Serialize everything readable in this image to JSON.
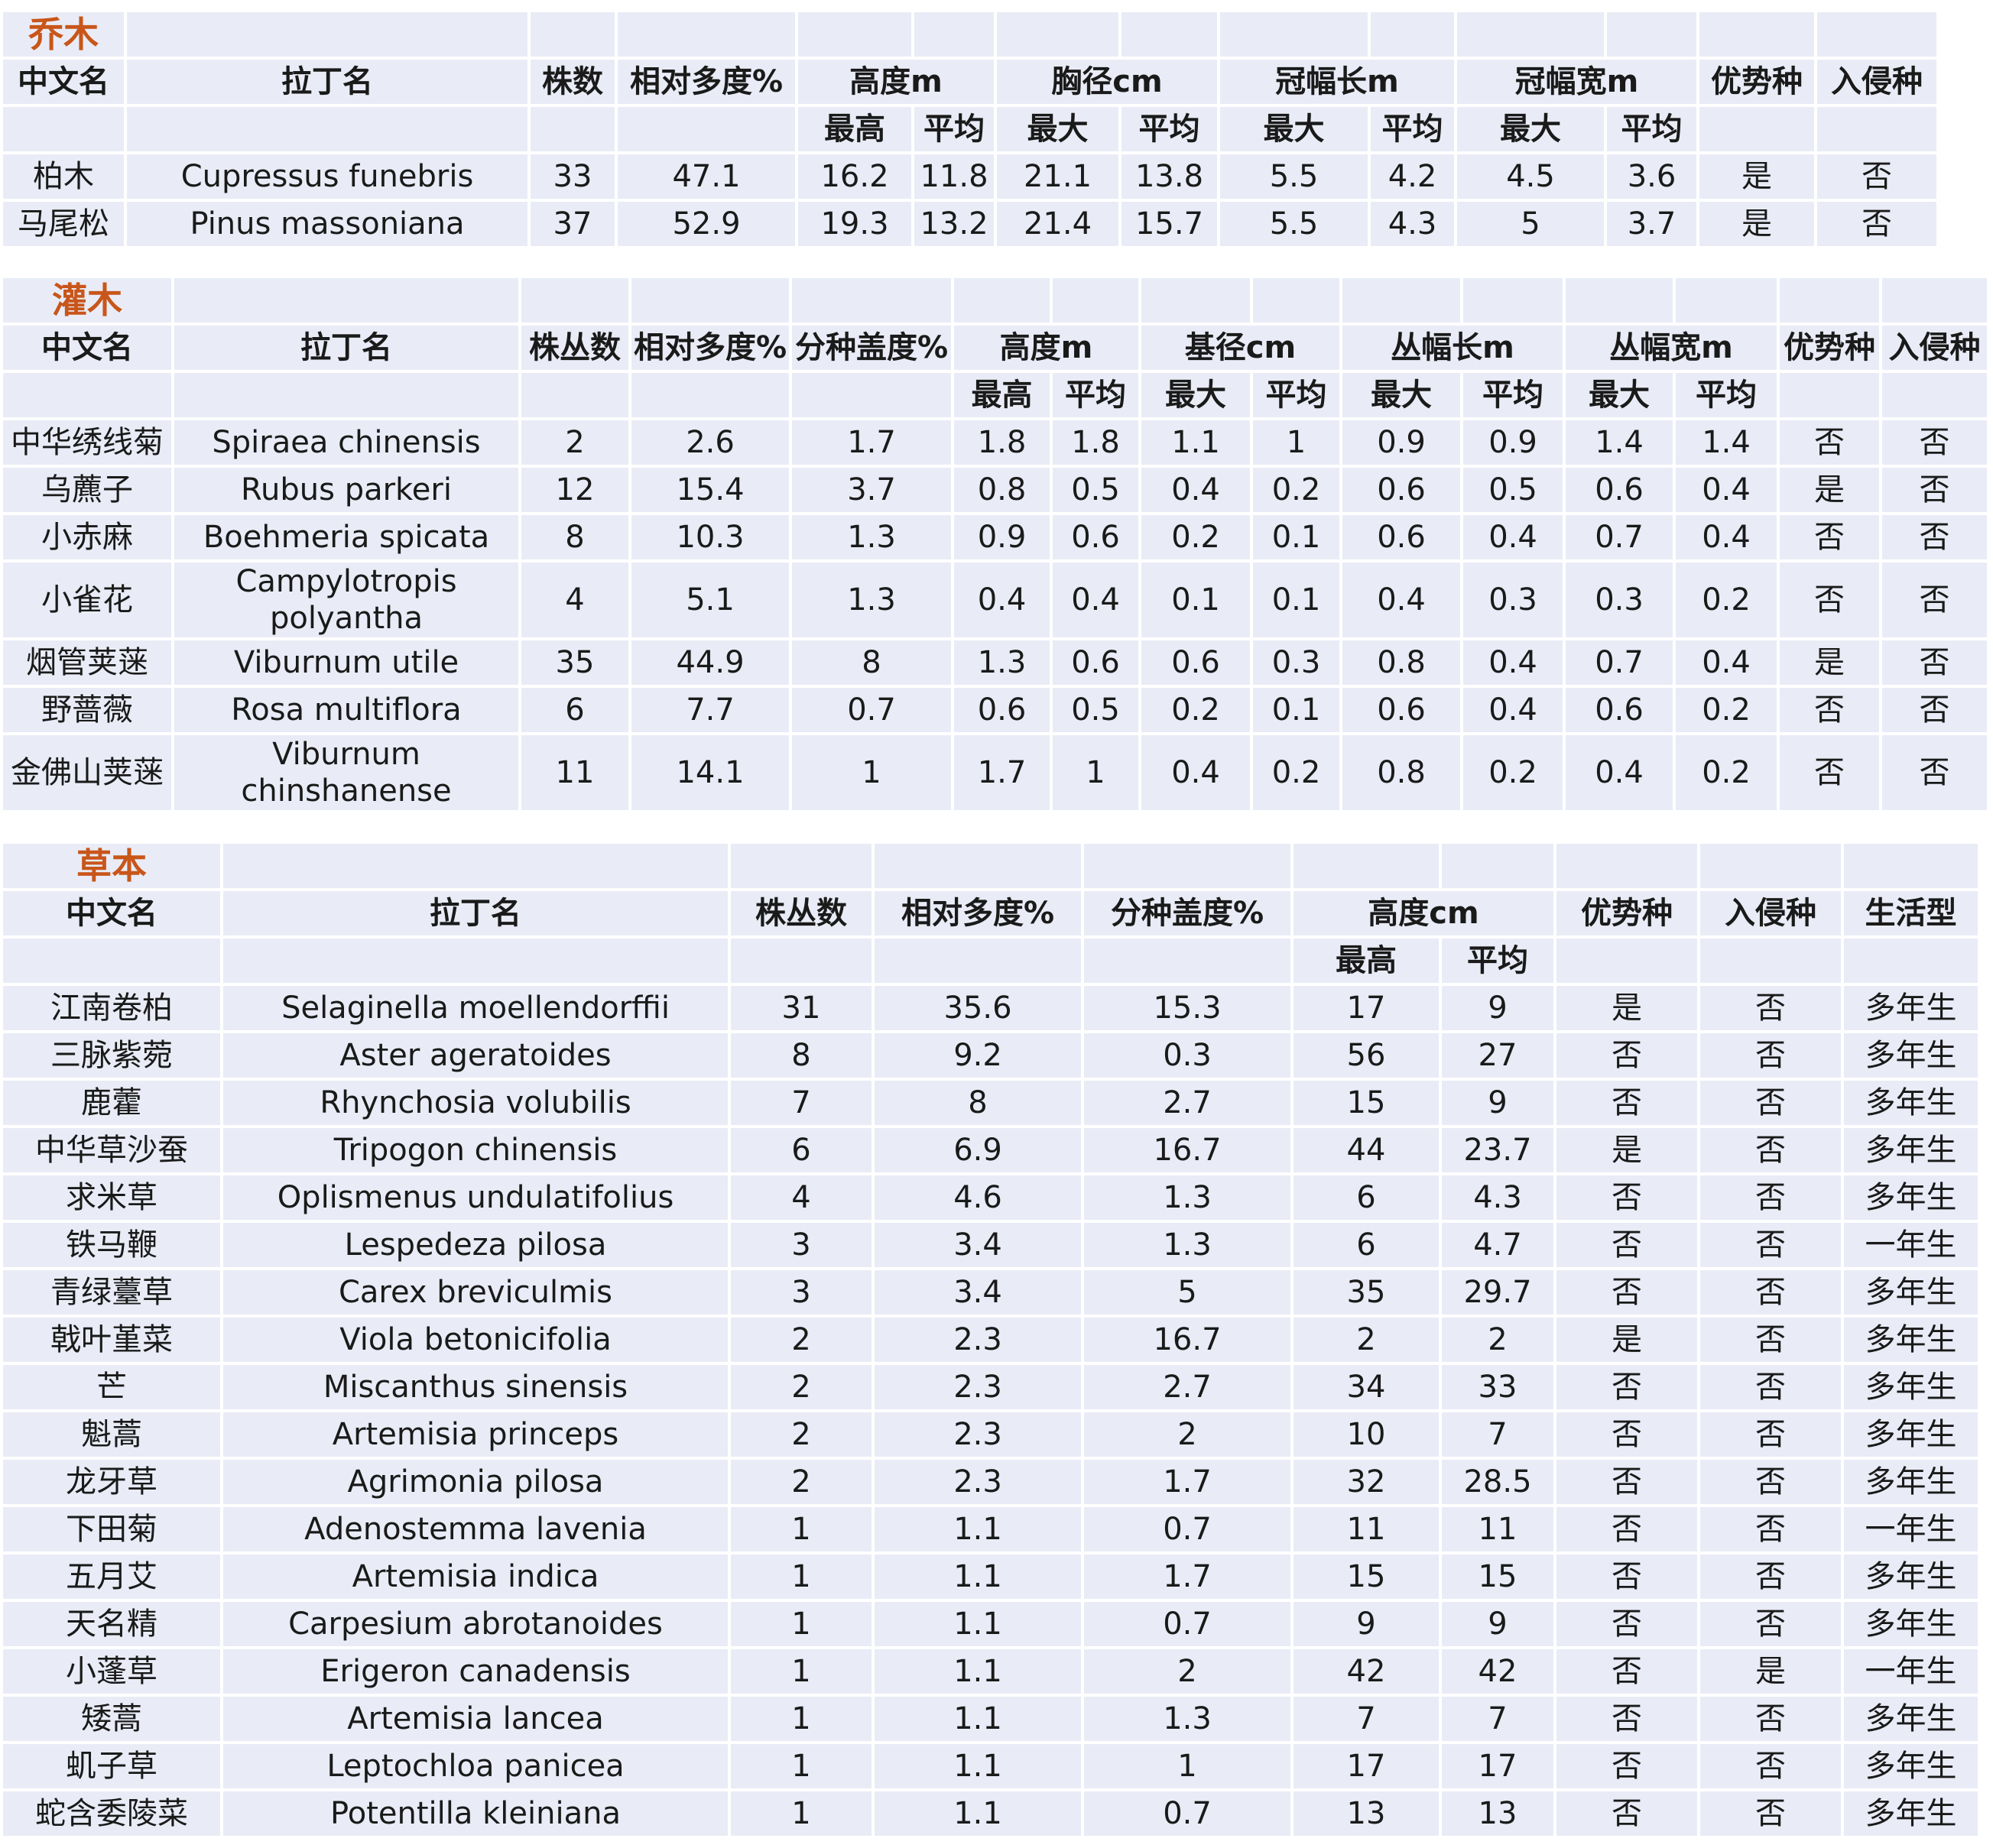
{
  "tree": {
    "title": "乔木",
    "headers": {
      "cn_name": "中文名",
      "latin": "拉丁名",
      "count": "株数",
      "rel_abund": "相对多度%",
      "height": "高度m",
      "dbh": "胸径cm",
      "crown_len": "冠幅长m",
      "crown_wid": "冠幅宽m",
      "dominant": "优势种",
      "invasive": "入侵种",
      "max_h": "最高",
      "avg": "平均",
      "max_d": "最大"
    },
    "rows": [
      [
        "柏木",
        "Cupressus funebris",
        "33",
        "47.1",
        "16.2",
        "11.8",
        "21.1",
        "13.8",
        "5.5",
        "4.2",
        "4.5",
        "3.6",
        "是",
        "否"
      ],
      [
        "马尾松",
        "Pinus massoniana",
        "37",
        "52.9",
        "19.3",
        "13.2",
        "21.4",
        "15.7",
        "5.5",
        "4.3",
        "5",
        "3.7",
        "是",
        "否"
      ]
    ]
  },
  "shrub": {
    "title": "灌木",
    "headers": {
      "cn_name": "中文名",
      "latin": "拉丁名",
      "count": "株丛数",
      "rel_abund": "相对多度%",
      "cover": "分种盖度%",
      "height": "高度m",
      "base_d": "基径cm",
      "clump_len": "丛幅长m",
      "clump_wid": "丛幅宽m",
      "dominant": "优势种",
      "invasive": "入侵种",
      "max_h": "最高",
      "avg": "平均",
      "max_d": "最大"
    },
    "rows": [
      [
        "中华绣线菊",
        "Spiraea chinensis",
        "2",
        "2.6",
        "1.7",
        "1.8",
        "1.8",
        "1.1",
        "1",
        "0.9",
        "0.9",
        "1.4",
        "1.4",
        "否",
        "否"
      ],
      [
        "乌藨子",
        "Rubus parkeri",
        "12",
        "15.4",
        "3.7",
        "0.8",
        "0.5",
        "0.4",
        "0.2",
        "0.6",
        "0.5",
        "0.6",
        "0.4",
        "是",
        "否"
      ],
      [
        "小赤麻",
        "Boehmeria spicata",
        "8",
        "10.3",
        "1.3",
        "0.9",
        "0.6",
        "0.2",
        "0.1",
        "0.6",
        "0.4",
        "0.7",
        "0.4",
        "否",
        "否"
      ],
      [
        "小雀花",
        "Campylotropis polyantha",
        "4",
        "5.1",
        "1.3",
        "0.4",
        "0.4",
        "0.1",
        "0.1",
        "0.4",
        "0.3",
        "0.3",
        "0.2",
        "否",
        "否"
      ],
      [
        "烟管荚蒾",
        "Viburnum utile",
        "35",
        "44.9",
        "8",
        "1.3",
        "0.6",
        "0.6",
        "0.3",
        "0.8",
        "0.4",
        "0.7",
        "0.4",
        "是",
        "否"
      ],
      [
        "野蔷薇",
        "Rosa multiflora",
        "6",
        "7.7",
        "0.7",
        "0.6",
        "0.5",
        "0.2",
        "0.1",
        "0.6",
        "0.4",
        "0.6",
        "0.2",
        "否",
        "否"
      ],
      [
        "金佛山荚蒾",
        "Viburnum chinshanense",
        "11",
        "14.1",
        "1",
        "1.7",
        "1",
        "0.4",
        "0.2",
        "0.8",
        "0.2",
        "0.4",
        "0.2",
        "否",
        "否"
      ]
    ]
  },
  "herb": {
    "title": "草本",
    "headers": {
      "cn_name": "中文名",
      "latin": "拉丁名",
      "count": "株丛数",
      "rel_abund": "相对多度%",
      "cover": "分种盖度%",
      "height": "高度cm",
      "dominant": "优势种",
      "invasive": "入侵种",
      "life_form": "生活型",
      "max_h": "最高",
      "avg": "平均"
    },
    "rows": [
      [
        "江南卷柏",
        "Selaginella moellendorffii",
        "31",
        "35.6",
        "15.3",
        "17",
        "9",
        "是",
        "否",
        "多年生"
      ],
      [
        "三脉紫菀",
        "Aster ageratoides",
        "8",
        "9.2",
        "0.3",
        "56",
        "27",
        "否",
        "否",
        "多年生"
      ],
      [
        "鹿藿",
        "Rhynchosia volubilis",
        "7",
        "8",
        "2.7",
        "15",
        "9",
        "否",
        "否",
        "多年生"
      ],
      [
        "中华草沙蚕",
        "Tripogon chinensis",
        "6",
        "6.9",
        "16.7",
        "44",
        "23.7",
        "是",
        "否",
        "多年生"
      ],
      [
        "求米草",
        "Oplismenus undulatifolius",
        "4",
        "4.6",
        "1.3",
        "6",
        "4.3",
        "否",
        "否",
        "多年生"
      ],
      [
        "铁马鞭",
        "Lespedeza pilosa",
        "3",
        "3.4",
        "1.3",
        "6",
        "4.7",
        "否",
        "否",
        "一年生"
      ],
      [
        "青绿薹草",
        "Carex breviculmis",
        "3",
        "3.4",
        "5",
        "35",
        "29.7",
        "否",
        "否",
        "多年生"
      ],
      [
        "戟叶堇菜",
        "Viola betonicifolia",
        "2",
        "2.3",
        "16.7",
        "2",
        "2",
        "是",
        "否",
        "多年生"
      ],
      [
        "芒",
        "Miscanthus sinensis",
        "2",
        "2.3",
        "2.7",
        "34",
        "33",
        "否",
        "否",
        "多年生"
      ],
      [
        "魁蒿",
        "Artemisia princeps",
        "2",
        "2.3",
        "2",
        "10",
        "7",
        "否",
        "否",
        "多年生"
      ],
      [
        "龙牙草",
        "Agrimonia pilosa",
        "2",
        "2.3",
        "1.7",
        "32",
        "28.5",
        "否",
        "否",
        "多年生"
      ],
      [
        "下田菊",
        "Adenostemma lavenia",
        "1",
        "1.1",
        "0.7",
        "11",
        "11",
        "否",
        "否",
        "一年生"
      ],
      [
        "五月艾",
        "Artemisia indica",
        "1",
        "1.1",
        "1.7",
        "15",
        "15",
        "否",
        "否",
        "多年生"
      ],
      [
        "天名精",
        "Carpesium abrotanoides",
        "1",
        "1.1",
        "0.7",
        "9",
        "9",
        "否",
        "否",
        "多年生"
      ],
      [
        "小蓬草",
        "Erigeron canadensis",
        "1",
        "1.1",
        "2",
        "42",
        "42",
        "否",
        "是",
        "一年生"
      ],
      [
        "矮蒿",
        "Artemisia lancea",
        "1",
        "1.1",
        "1.3",
        "7",
        "7",
        "否",
        "否",
        "多年生"
      ],
      [
        "虮子草",
        "Leptochloa panicea",
        "1",
        "1.1",
        "1",
        "17",
        "17",
        "否",
        "否",
        "多年生"
      ],
      [
        "蛇含委陵菜",
        "Potentilla kleiniana",
        "1",
        "1.1",
        "0.7",
        "13",
        "13",
        "否",
        "否",
        "多年生"
      ]
    ]
  }
}
